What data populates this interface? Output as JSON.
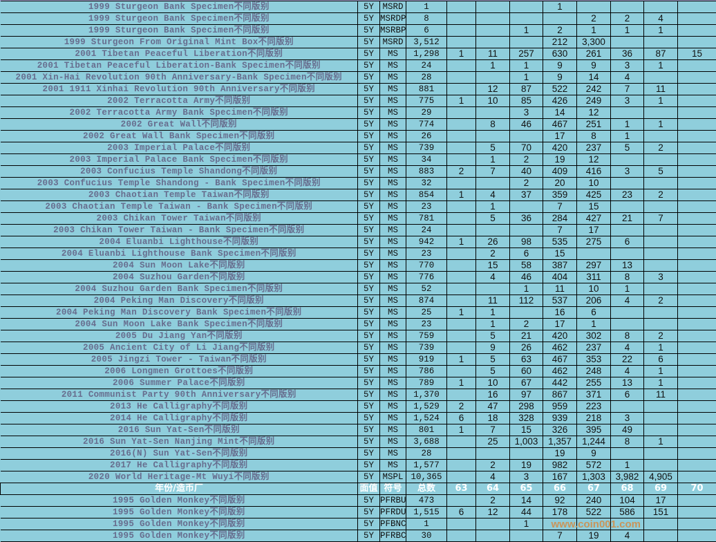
{
  "colors": {
    "cell_bg": "#8fcedc",
    "name_text": "#676d8e",
    "header_text": "#ffffff",
    "grid": "#000000"
  },
  "header": {
    "name": "年份/造币厂",
    "face": "面值",
    "code": "符号",
    "total": "总数",
    "years": [
      "63",
      "64",
      "65",
      "66",
      "67",
      "68",
      "69",
      "70"
    ]
  },
  "rows_top": [
    {
      "name": "1999 Sturgeon Bank Specimen不同版别",
      "face": "5Y",
      "code": "MSRD",
      "total": "1",
      "grades": [
        "",
        "",
        "",
        "1",
        "",
        "",
        "",
        ""
      ]
    },
    {
      "name": "1999 Sturgeon Bank Specimen不同版别",
      "face": "5Y",
      "code": "MSRDP",
      "total": "8",
      "grades": [
        "",
        "",
        "",
        "",
        "2",
        "2",
        "4",
        ""
      ]
    },
    {
      "name": "1999 Sturgeon Bank Specimen不同版别",
      "face": "5Y",
      "code": "MSRBP",
      "total": "6",
      "grades": [
        "",
        "",
        "1",
        "2",
        "1",
        "1",
        "1",
        ""
      ]
    },
    {
      "name": "1999 Sturgeon From Original Mint Box不同版别",
      "face": "5Y",
      "code": "MSRD",
      "total": "3,512",
      "grades": [
        "",
        "",
        "",
        "212",
        "3,300",
        "",
        "",
        ""
      ]
    },
    {
      "name": "2001 Tibetan Peaceful Liberation不同版别",
      "face": "5Y",
      "code": "MS",
      "total": "1,298",
      "grades": [
        "1",
        "11",
        "257",
        "630",
        "261",
        "36",
        "87",
        "15"
      ]
    },
    {
      "name": "2001 Tibetan Peaceful Liberation-Bank Specimen不同版别",
      "face": "5Y",
      "code": "MS",
      "total": "24",
      "grades": [
        "",
        "1",
        "1",
        "9",
        "9",
        "3",
        "1",
        ""
      ]
    },
    {
      "name": "2001 Xin-Hai Revolution 90th Anniversary-Bank Specimen不同版别",
      "face": "5Y",
      "code": "MS",
      "total": "28",
      "grades": [
        "",
        "",
        "1",
        "9",
        "14",
        "4",
        "",
        ""
      ]
    },
    {
      "name": "2001 1911 Xinhai Revolution 90th Anniversary不同版别",
      "face": "5Y",
      "code": "MS",
      "total": "881",
      "grades": [
        "",
        "12",
        "87",
        "522",
        "242",
        "7",
        "11",
        ""
      ]
    },
    {
      "name": "2002 Terracotta Army不同版别",
      "face": "5Y",
      "code": "MS",
      "total": "775",
      "grades": [
        "1",
        "10",
        "85",
        "426",
        "249",
        "3",
        "1",
        ""
      ]
    },
    {
      "name": "2002 Terracotta Army Bank Specimen不同版别",
      "face": "5Y",
      "code": "MS",
      "total": "29",
      "grades": [
        "",
        "",
        "3",
        "14",
        "12",
        "",
        "",
        ""
      ]
    },
    {
      "name": "2002 Great Wall不同版别",
      "face": "5Y",
      "code": "MS",
      "total": "774",
      "grades": [
        "",
        "8",
        "46",
        "467",
        "251",
        "1",
        "1",
        ""
      ]
    },
    {
      "name": "2002 Great Wall Bank Specimen不同版别",
      "face": "5Y",
      "code": "MS",
      "total": "26",
      "grades": [
        "",
        "",
        "",
        "17",
        "8",
        "1",
        "",
        ""
      ]
    },
    {
      "name": "2003 Imperial Palace不同版别",
      "face": "5Y",
      "code": "MS",
      "total": "739",
      "grades": [
        "",
        "5",
        "70",
        "420",
        "237",
        "5",
        "2",
        ""
      ]
    },
    {
      "name": "2003 Imperial Palace Bank Specimen不同版别",
      "face": "5Y",
      "code": "MS",
      "total": "34",
      "grades": [
        "",
        "1",
        "2",
        "19",
        "12",
        "",
        "",
        ""
      ]
    },
    {
      "name": "2003 Confucius Temple Shandong不同版别",
      "face": "5Y",
      "code": "MS",
      "total": "883",
      "grades": [
        "2",
        "7",
        "40",
        "409",
        "416",
        "3",
        "5",
        ""
      ]
    },
    {
      "name": "2003 Confucius Temple Shandong - Bank Specimen不同版别",
      "face": "5Y",
      "code": "MS",
      "total": "32",
      "grades": [
        "",
        "",
        "2",
        "20",
        "10",
        "",
        "",
        ""
      ]
    },
    {
      "name": "2003 Chaotian Temple Taiwan不同版别",
      "face": "5Y",
      "code": "MS",
      "total": "854",
      "grades": [
        "1",
        "4",
        "37",
        "359",
        "425",
        "23",
        "2",
        ""
      ]
    },
    {
      "name": "2003 Chaotian Temple Taiwan - Bank Specimen不同版别",
      "face": "5Y",
      "code": "MS",
      "total": "23",
      "grades": [
        "",
        "1",
        "",
        "7",
        "15",
        "",
        "",
        ""
      ]
    },
    {
      "name": "2003 Chikan Tower Taiwan不同版别",
      "face": "5Y",
      "code": "MS",
      "total": "781",
      "grades": [
        "",
        "5",
        "36",
        "284",
        "427",
        "21",
        "7",
        ""
      ]
    },
    {
      "name": "2003 Chikan Tower Taiwan - Bank Specimen不同版别",
      "face": "5Y",
      "code": "MS",
      "total": "24",
      "grades": [
        "",
        "",
        "",
        "7",
        "17",
        "",
        "",
        ""
      ]
    },
    {
      "name": "2004 Eluanbi Lighthouse不同版别",
      "face": "5Y",
      "code": "MS",
      "total": "942",
      "grades": [
        "1",
        "26",
        "98",
        "535",
        "275",
        "6",
        "",
        ""
      ]
    },
    {
      "name": "2004 Eluanbi Lighthouse Bank Specimen不同版别",
      "face": "5Y",
      "code": "MS",
      "total": "23",
      "grades": [
        "",
        "2",
        "6",
        "15",
        "",
        "",
        "",
        ""
      ]
    },
    {
      "name": "2004 Sun Moon Lake不同版别",
      "face": "5Y",
      "code": "MS",
      "total": "770",
      "grades": [
        "",
        "15",
        "58",
        "387",
        "297",
        "13",
        "",
        ""
      ]
    },
    {
      "name": "2004 Suzhou Garden不同版别",
      "face": "5Y",
      "code": "MS",
      "total": "776",
      "grades": [
        "",
        "4",
        "46",
        "404",
        "311",
        "8",
        "3",
        ""
      ]
    },
    {
      "name": "2004 Suzhou Garden Bank Specimen不同版别",
      "face": "5Y",
      "code": "MS",
      "total": "52",
      "grades": [
        "",
        "",
        "1",
        "11",
        "10",
        "1",
        "",
        ""
      ]
    },
    {
      "name": "2004 Peking Man Discovery不同版别",
      "face": "5Y",
      "code": "MS",
      "total": "874",
      "grades": [
        "",
        "11",
        "112",
        "537",
        "206",
        "4",
        "2",
        ""
      ]
    },
    {
      "name": "2004 Peking Man Discovery Bank Specimen不同版别",
      "face": "5Y",
      "code": "MS",
      "total": "25",
      "grades": [
        "1",
        "1",
        "",
        "16",
        "6",
        "",
        "",
        ""
      ]
    },
    {
      "name": "2004 Sun Moon Lake Bank Specimen不同版别",
      "face": "5Y",
      "code": "MS",
      "total": "23",
      "grades": [
        "",
        "1",
        "2",
        "17",
        "1",
        "",
        "",
        ""
      ]
    },
    {
      "name": "2005 Du Jiang Yan不同版别",
      "face": "5Y",
      "code": "MS",
      "total": "759",
      "grades": [
        "",
        "5",
        "21",
        "420",
        "302",
        "8",
        "2",
        ""
      ]
    },
    {
      "name": "2005 Ancient City of Li Jiang不同版别",
      "face": "5Y",
      "code": "MS",
      "total": "739",
      "grades": [
        "",
        "9",
        "26",
        "462",
        "237",
        "4",
        "1",
        ""
      ]
    },
    {
      "name": "2005 Jingzi Tower - Taiwan不同版别",
      "face": "5Y",
      "code": "MS",
      "total": "919",
      "grades": [
        "1",
        "5",
        "63",
        "467",
        "353",
        "22",
        "6",
        ""
      ]
    },
    {
      "name": "2006 Longmen Grottoes不同版别",
      "face": "5Y",
      "code": "MS",
      "total": "786",
      "grades": [
        "",
        "5",
        "60",
        "462",
        "248",
        "4",
        "1",
        ""
      ]
    },
    {
      "name": "2006 Summer Palace不同版别",
      "face": "5Y",
      "code": "MS",
      "total": "789",
      "grades": [
        "1",
        "10",
        "67",
        "442",
        "255",
        "13",
        "1",
        ""
      ]
    },
    {
      "name": "2011 Communist Party 90th Anniversary不同版别",
      "face": "5Y",
      "code": "MS",
      "total": "1,370",
      "grades": [
        "",
        "16",
        "97",
        "867",
        "371",
        "6",
        "11",
        ""
      ]
    },
    {
      "name": "2013 He Calligraphy不同版别",
      "face": "5Y",
      "code": "MS",
      "total": "1,529",
      "grades": [
        "2",
        "47",
        "298",
        "959",
        "223",
        "",
        "",
        ""
      ]
    },
    {
      "name": "2014 He Calligraphy不同版别",
      "face": "5Y",
      "code": "MS",
      "total": "1,524",
      "grades": [
        "6",
        "18",
        "328",
        "939",
        "218",
        "3",
        "",
        ""
      ]
    },
    {
      "name": "2016 Sun Yat-Sen不同版别",
      "face": "5Y",
      "code": "MS",
      "total": "801",
      "grades": [
        "1",
        "7",
        "15",
        "326",
        "395",
        "49",
        "",
        ""
      ]
    },
    {
      "name": "2016 Sun Yat-Sen Nanjing Mint不同版别",
      "face": "5Y",
      "code": "MS",
      "total": "3,688",
      "grades": [
        "",
        "25",
        "1,003",
        "1,357",
        "1,244",
        "8",
        "1",
        ""
      ]
    },
    {
      "name": "2016(N) Sun Yat-Sen不同版别",
      "face": "5Y",
      "code": "MS",
      "total": "28",
      "grades": [
        "",
        "",
        "",
        "19",
        "9",
        "",
        "",
        ""
      ]
    },
    {
      "name": "2017 He Calligraphy不同版别",
      "face": "5Y",
      "code": "MS",
      "total": "1,577",
      "grades": [
        "",
        "2",
        "19",
        "982",
        "572",
        "1",
        "",
        ""
      ]
    },
    {
      "name": "2020 World Heritage-Mt Wuyi不同版别",
      "face": "5Y",
      "code": "MSPL",
      "total": "10,365",
      "grades": [
        "",
        "4",
        "3",
        "167",
        "1,303",
        "3,982",
        "4,905",
        ""
      ]
    }
  ],
  "rows_bottom": [
    {
      "name": "1995 Golden Monkey不同版别",
      "face": "5Y",
      "code": "PFRBU",
      "total": "473",
      "grades": [
        "",
        "2",
        "14",
        "92",
        "240",
        "104",
        "17",
        ""
      ]
    },
    {
      "name": "1995 Golden Monkey不同版别",
      "face": "5Y",
      "code": "PFRDU",
      "total": "1,515",
      "grades": [
        "6",
        "12",
        "44",
        "178",
        "522",
        "586",
        "151",
        ""
      ]
    },
    {
      "name": "1995 Golden Monkey不同版别",
      "face": "5Y",
      "code": "PFBNC",
      "total": "1",
      "grades": [
        "",
        "",
        "1",
        "",
        "",
        "",
        "",
        ""
      ]
    },
    {
      "name": "1995 Golden Monkey不同版别",
      "face": "5Y",
      "code": "PFRBC",
      "total": "30",
      "grades": [
        "",
        "",
        "",
        "7",
        "19",
        "4",
        "",
        ""
      ]
    }
  ],
  "watermark": "www.coin001.com"
}
